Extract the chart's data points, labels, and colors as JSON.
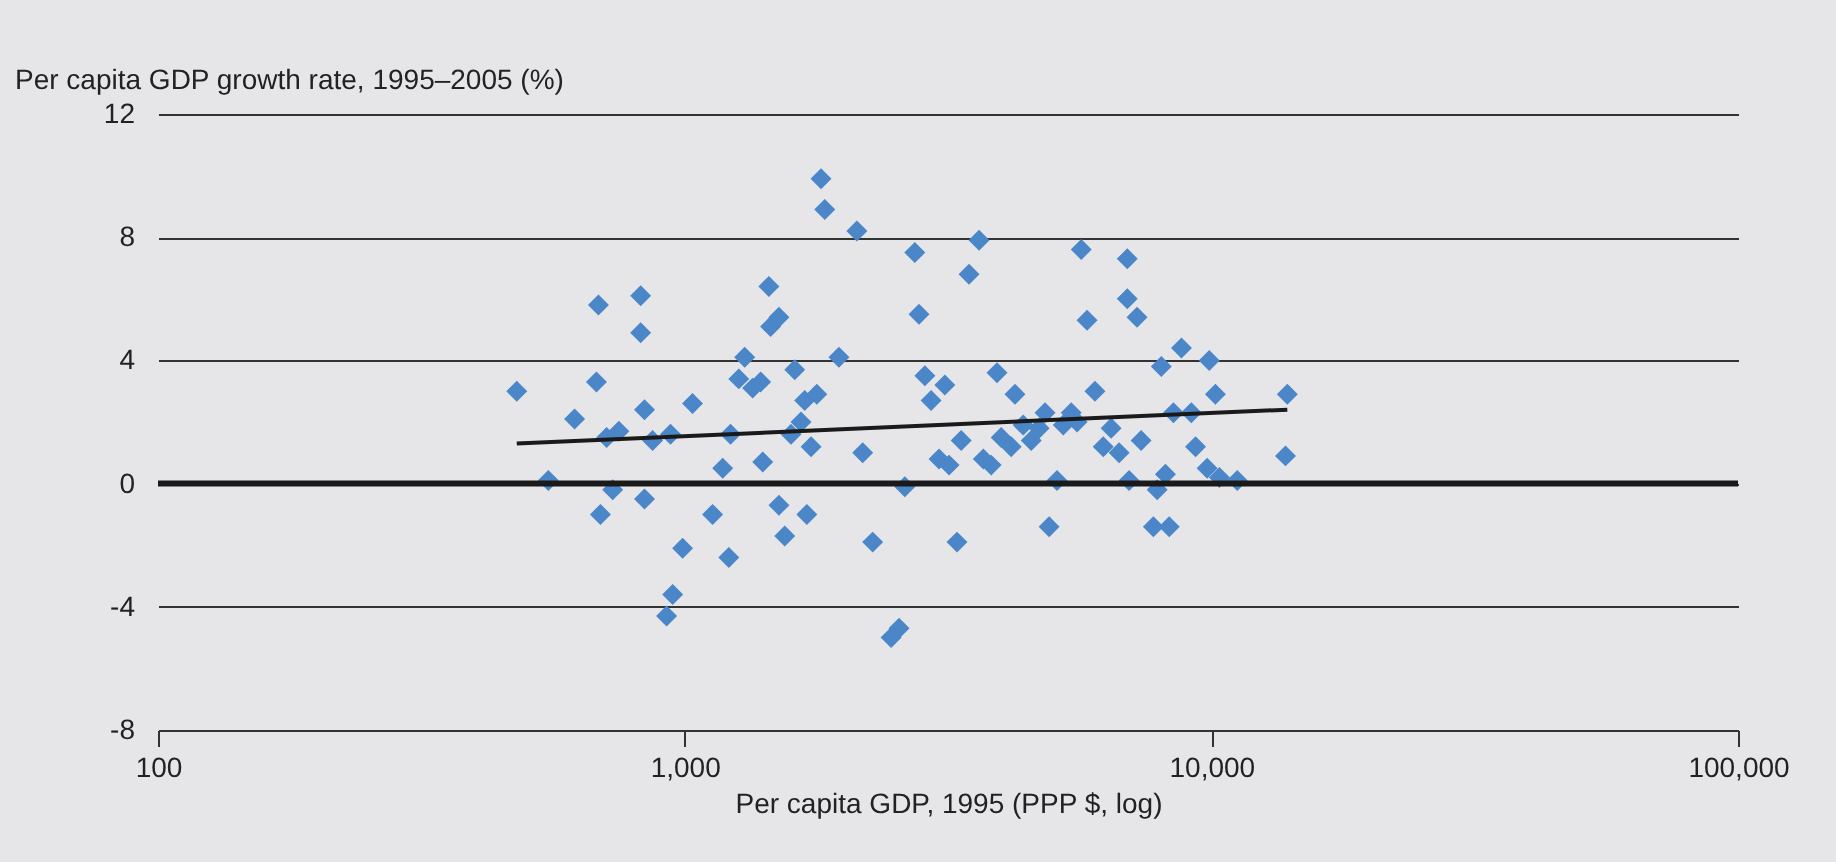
{
  "chart_data": {
    "type": "scatter",
    "ylabel": "Per capita GDP growth rate, 1995–2005 (%)",
    "xlabel": "Per capita GDP, 1995 (PPP $, log)",
    "log": "x",
    "xlim": [
      100,
      100000
    ],
    "xticks": [
      100,
      {
        "value": 1000,
        "label": "1,000"
      },
      {
        "value": 10000,
        "label": "10,000"
      },
      {
        "value": 100000,
        "label": "100,000"
      }
    ],
    "ylim": [
      -8,
      12
    ],
    "yticks": [
      -8,
      -4,
      0,
      4,
      8,
      12
    ],
    "grid": "y",
    "marker": "diamond",
    "ref_lines": [
      {
        "axis": "y",
        "value": 0,
        "color": "#1a1a1a"
      }
    ],
    "series": [
      {
        "color": "#4a86c8",
        "x": [
          480,
          551,
          618,
          686,
          692,
          680,
          730,
          750,
          711,
          825,
          825,
          839,
          839,
          869,
          940,
          1035,
          991,
          949,
          924,
          1130,
          1181,
          1213,
          1222,
          1267,
          1300,
          1346,
          1394,
          1445,
          1456,
          1510,
          1407,
          1510,
          1592,
          1618,
          1690,
          1738,
          1782,
          1663,
          1706,
          1549,
          1815,
          1845,
          2123,
          1963,
          2178,
          2275,
          2466,
          2553,
          2618,
          2735,
          2786,
          2858,
          2937,
          3041,
          3119,
          3177,
          3289,
          3350,
          3467,
          3622,
          3690,
          3819,
          3918,
          3990,
          4169,
          4238,
          4393,
          4550,
          4710,
          4833,
          4920,
          5093,
          5234,
          5420,
          5560,
          5662,
          5808,
          6012,
          6234,
          6452,
          6683,
          6925,
          6925,
          7227,
          6980,
          7356,
          7762,
          7892,
          8035,
          8182,
          8474,
          8318,
          8776,
          9162,
          9333,
          9818,
          9909,
          10180,
          10360,
          11200,
          13830,
          13940
        ],
        "values": [
          3.0,
          0.1,
          2.1,
          5.8,
          -1.0,
          3.3,
          -0.2,
          1.7,
          1.5,
          6.1,
          4.9,
          -0.5,
          2.4,
          1.4,
          1.6,
          2.6,
          -2.1,
          -3.6,
          -4.3,
          -1.0,
          0.5,
          -2.4,
          1.6,
          3.4,
          4.1,
          3.1,
          3.3,
          6.4,
          5.1,
          5.4,
          0.7,
          -0.7,
          1.6,
          3.7,
          2.7,
          1.2,
          2.9,
          2.0,
          -1.0,
          -1.7,
          9.9,
          8.9,
          8.2,
          4.1,
          1.0,
          -1.9,
          -5.0,
          -4.7,
          -0.1,
          7.5,
          5.5,
          3.5,
          2.7,
          0.8,
          3.2,
          0.6,
          -1.9,
          1.4,
          6.8,
          7.9,
          0.8,
          0.6,
          3.6,
          1.5,
          1.2,
          2.9,
          1.9,
          1.4,
          1.8,
          2.3,
          -1.4,
          0.1,
          1.9,
          2.3,
          2.0,
          7.6,
          5.3,
          3.0,
          1.2,
          1.8,
          1.0,
          7.3,
          6.0,
          5.4,
          0.1,
          1.4,
          -1.4,
          -0.2,
          3.8,
          0.3,
          2.3,
          -1.4,
          4.4,
          2.3,
          1.2,
          0.5,
          4.0,
          2.9,
          0.2,
          0.1,
          0.9,
          2.9
        ]
      },
      {
        "type": "line",
        "color": "#1a1a1a",
        "marker": "none",
        "x": [
          480,
          13940
        ],
        "values": [
          1.3,
          2.4
        ]
      }
    ]
  }
}
